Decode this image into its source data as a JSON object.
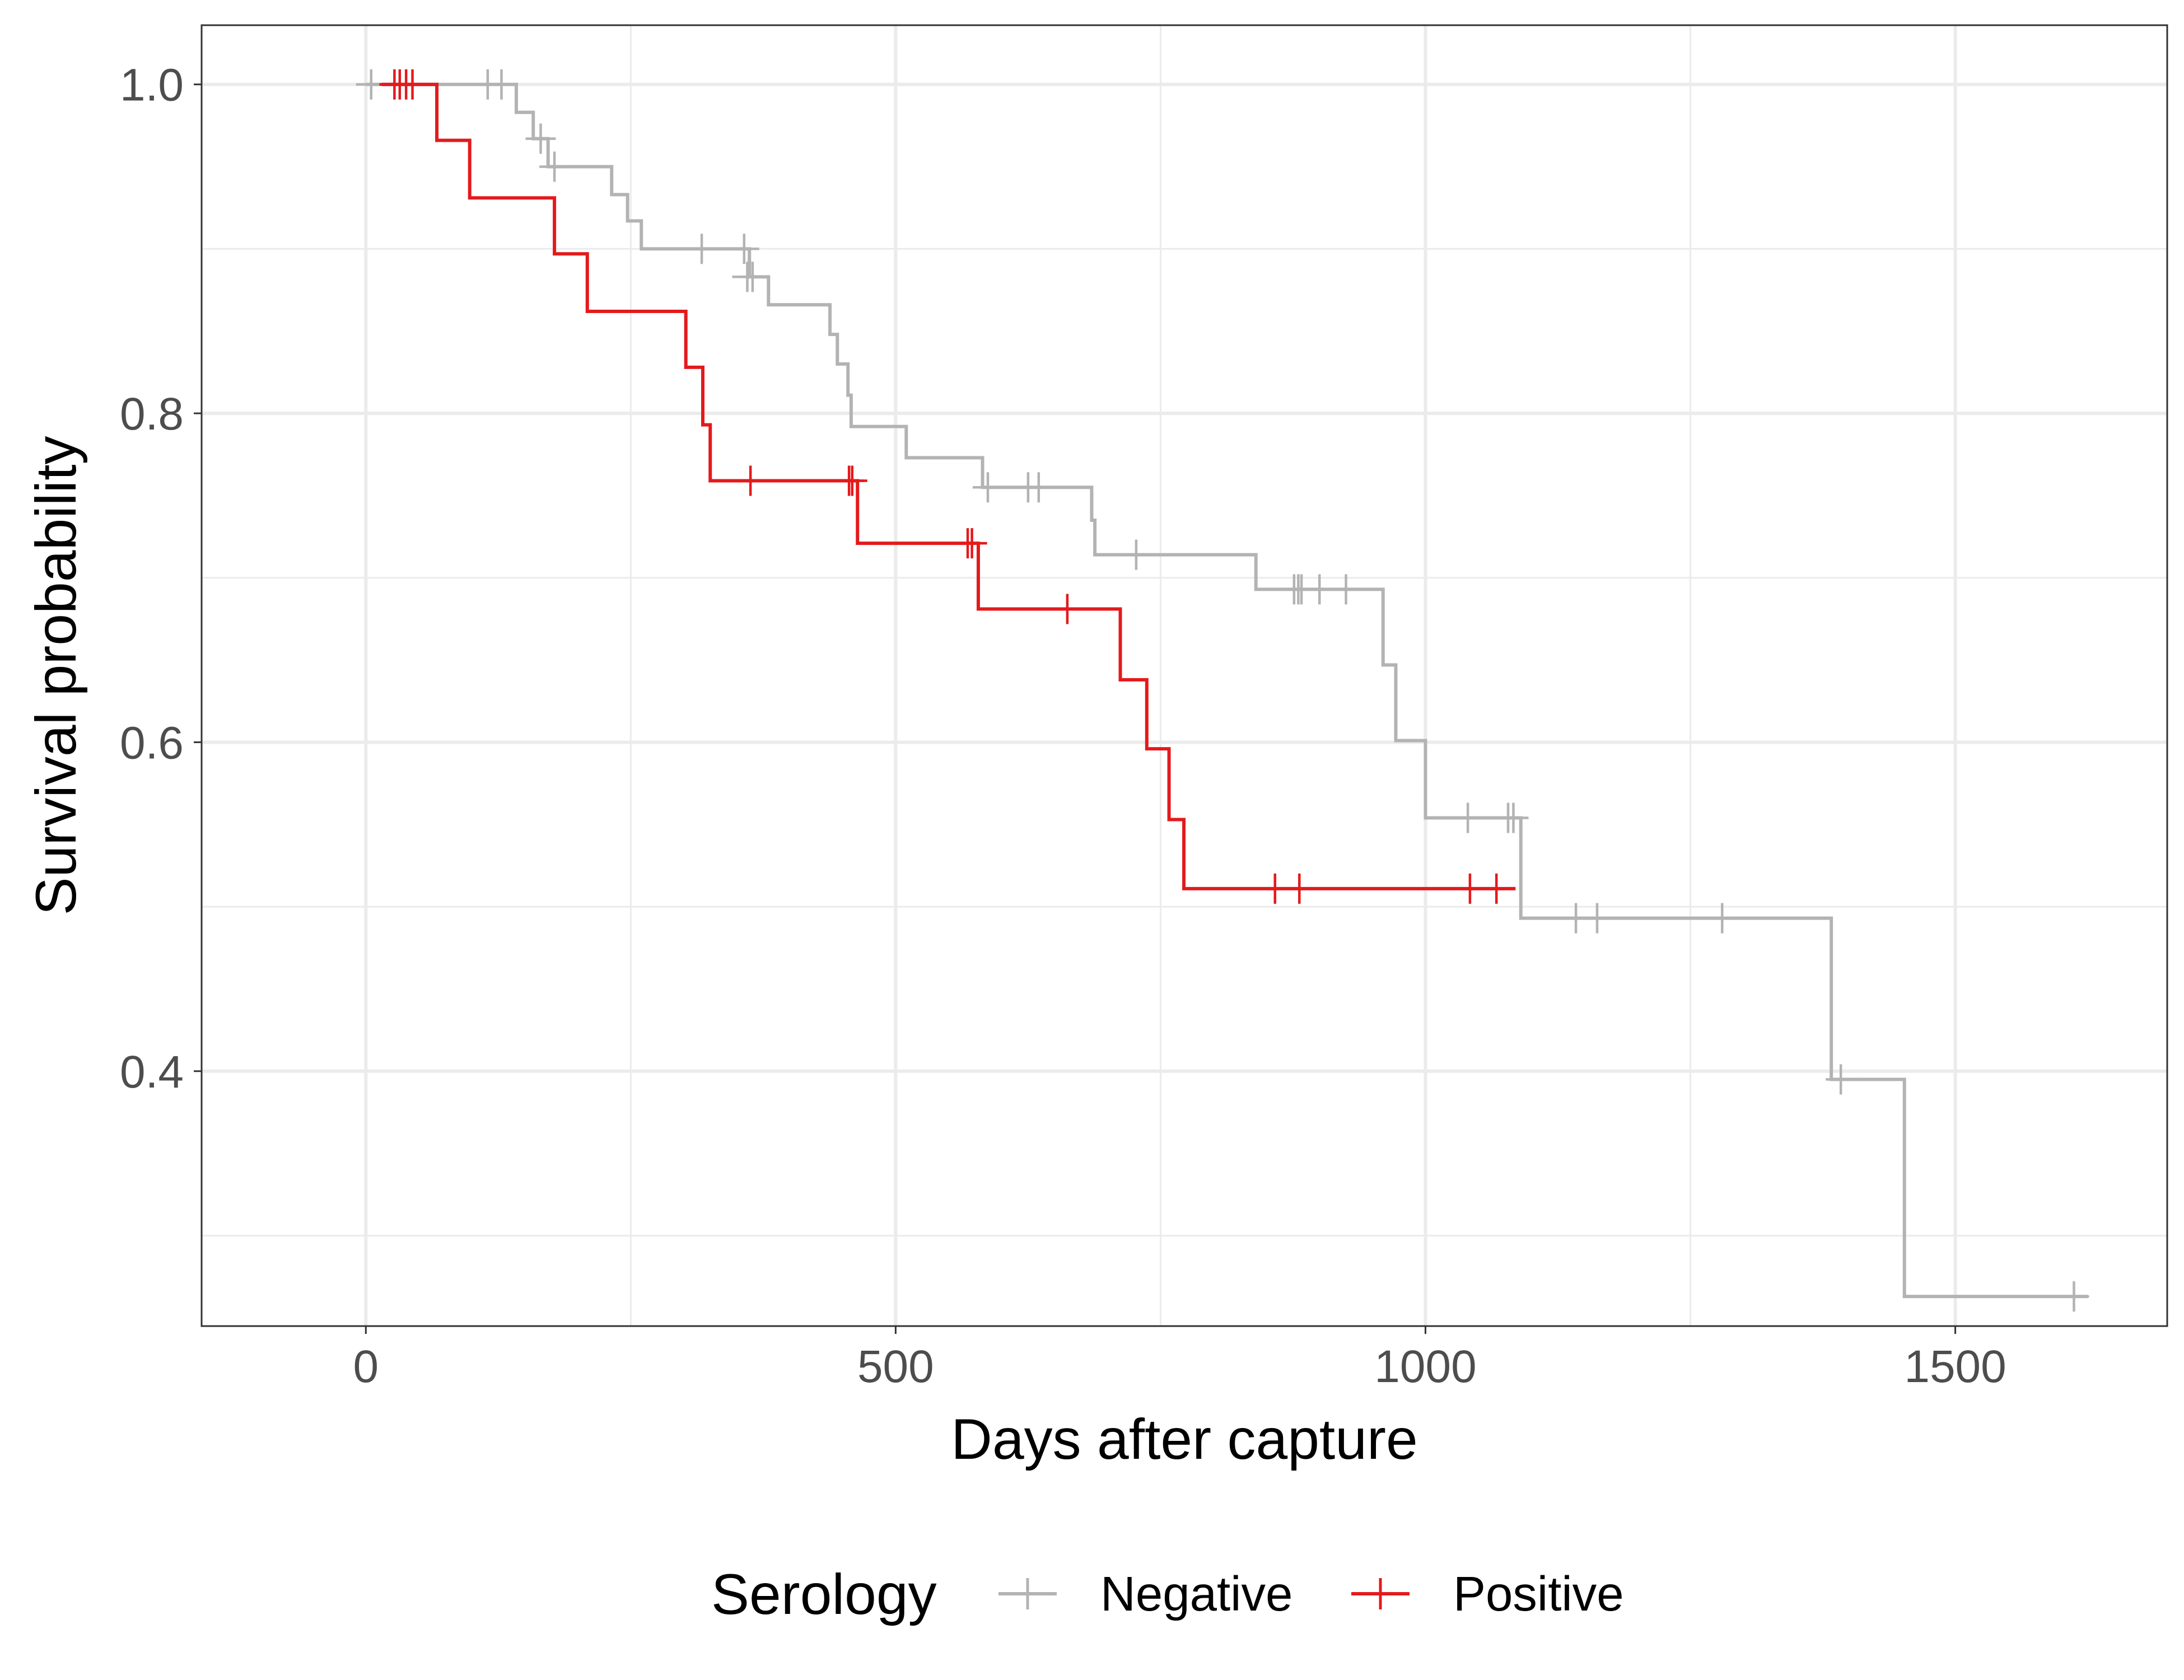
{
  "chart_data": {
    "type": "line",
    "subtype": "kaplan-meier-step",
    "xlabel": "Days after capture",
    "ylabel": "Survival probability",
    "xlim": [
      -155,
      1700
    ],
    "ylim": [
      0.245,
      1.036
    ],
    "x_ticks": [
      0,
      500,
      1000,
      1500
    ],
    "x_tick_labels": [
      "0",
      "500",
      "1000",
      "1500"
    ],
    "y_ticks": [
      0.4,
      0.6,
      0.8,
      1.0
    ],
    "y_tick_labels": [
      "0.4",
      "0.6",
      "0.8",
      "1.0"
    ],
    "x_minor_ticks": [
      250,
      750,
      1250
    ],
    "y_minor_ticks": [
      0.3,
      0.5,
      0.7,
      0.9
    ],
    "grid": true,
    "legend_position": "bottom",
    "legend_title": "Serology",
    "series": [
      {
        "name": "Negative",
        "color": "#b3b3b3",
        "steps": [
          [
            0,
            1.0
          ],
          [
            142,
            0.983
          ],
          [
            158,
            0.967
          ],
          [
            172,
            0.95
          ],
          [
            232,
            0.933
          ],
          [
            247,
            0.917
          ],
          [
            260,
            0.9
          ],
          [
            362,
            0.883
          ],
          [
            380,
            0.866
          ],
          [
            438,
            0.848
          ],
          [
            445,
            0.83
          ],
          [
            455,
            0.811
          ],
          [
            458,
            0.792
          ],
          [
            510,
            0.773
          ],
          [
            582,
            0.755
          ],
          [
            685,
            0.735
          ],
          [
            688,
            0.714
          ],
          [
            840,
            0.693
          ],
          [
            960,
            0.647
          ],
          [
            972,
            0.601
          ],
          [
            1000,
            0.554
          ],
          [
            1090,
            0.493
          ],
          [
            1383,
            0.395
          ],
          [
            1452,
            0.263
          ],
          [
            1625,
            0.263
          ]
        ],
        "censored": [
          [
            5,
            1.0
          ],
          [
            115,
            1.0
          ],
          [
            128,
            1.0
          ],
          [
            165,
            0.967
          ],
          [
            178,
            0.95
          ],
          [
            317,
            0.9
          ],
          [
            357,
            0.9
          ],
          [
            360,
            0.883
          ],
          [
            365,
            0.883
          ],
          [
            587,
            0.755
          ],
          [
            625,
            0.755
          ],
          [
            635,
            0.755
          ],
          [
            727,
            0.714
          ],
          [
            876,
            0.693
          ],
          [
            880,
            0.693
          ],
          [
            883,
            0.693
          ],
          [
            900,
            0.693
          ],
          [
            925,
            0.693
          ],
          [
            1040,
            0.554
          ],
          [
            1078,
            0.554
          ],
          [
            1083,
            0.554
          ],
          [
            1142,
            0.493
          ],
          [
            1162,
            0.493
          ],
          [
            1280,
            0.493
          ],
          [
            1392,
            0.395
          ],
          [
            1612,
            0.263
          ]
        ]
      },
      {
        "name": "Positive",
        "color": "#e31a1c",
        "steps": [
          [
            15,
            1.0
          ],
          [
            67,
            0.966
          ],
          [
            98,
            0.931
          ],
          [
            178,
            0.897
          ],
          [
            209,
            0.862
          ],
          [
            302,
            0.828
          ],
          [
            318,
            0.793
          ],
          [
            325,
            0.759
          ],
          [
            464,
            0.721
          ],
          [
            578,
            0.681
          ],
          [
            712,
            0.638
          ],
          [
            737,
            0.596
          ],
          [
            758,
            0.553
          ],
          [
            772,
            0.511
          ],
          [
            1085,
            0.511
          ]
        ],
        "censored": [
          [
            27,
            1.0
          ],
          [
            32,
            1.0
          ],
          [
            38,
            1.0
          ],
          [
            44,
            1.0
          ],
          [
            363,
            0.759
          ],
          [
            456,
            0.759
          ],
          [
            459,
            0.759
          ],
          [
            568,
            0.721
          ],
          [
            572,
            0.721
          ],
          [
            662,
            0.681
          ],
          [
            858,
            0.511
          ],
          [
            881,
            0.511
          ],
          [
            1042,
            0.511
          ],
          [
            1067,
            0.511
          ]
        ]
      }
    ]
  }
}
